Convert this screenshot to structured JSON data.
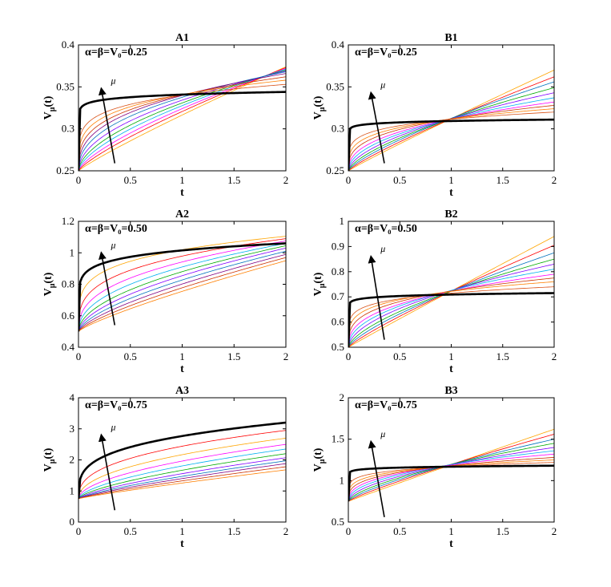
{
  "figure": {
    "background": "#ffffff"
  },
  "chart_data": [
    {
      "type": "line",
      "title": "A1",
      "annotation": "α=β=V₀=0.25",
      "mu_label": "μ",
      "xlabel": "t",
      "ylabel": "V_μ(t)",
      "xlim": [
        0,
        2
      ],
      "ylim": [
        0.25,
        0.4
      ],
      "xticks": [
        "0",
        "0.5",
        "1",
        "1.5",
        "2"
      ],
      "yticks": [
        "0.25",
        "0.3",
        "0.35",
        "0.4"
      ],
      "grid": false,
      "legend": "none",
      "arrow": {
        "from": [
          0.35,
          0.259
        ],
        "to": [
          0.22,
          0.348
        ]
      },
      "y0": 0.25,
      "series": [
        {
          "label": "thick",
          "color": "#000000",
          "end": 0.344,
          "shape": 0.05
        },
        {
          "color": "#ffa500",
          "end": 0.374,
          "shape": 0.9
        },
        {
          "color": "#ff0000",
          "end": 0.373,
          "shape": 0.8
        },
        {
          "color": "#ff00ff",
          "end": 0.372,
          "shape": 0.72
        },
        {
          "color": "#00b0f0",
          "end": 0.371,
          "shape": 0.64
        },
        {
          "color": "#00aa00",
          "end": 0.37,
          "shape": 0.57
        },
        {
          "color": "#8000ff",
          "end": 0.369,
          "shape": 0.5
        },
        {
          "color": "#0072bd",
          "end": 0.368,
          "shape": 0.43
        },
        {
          "color": "#800080",
          "end": 0.366,
          "shape": 0.37
        },
        {
          "color": "#cc3300",
          "end": 0.362,
          "shape": 0.31
        },
        {
          "color": "#ff7f00",
          "end": 0.358,
          "shape": 0.25
        },
        {
          "color": "#d95319",
          "end": 0.353,
          "shape": 0.19
        }
      ]
    },
    {
      "type": "line",
      "title": "B1",
      "annotation": "α=β=V₀=0.25",
      "mu_label": "μ",
      "xlabel": "t",
      "ylabel": "V_μ(t)",
      "xlim": [
        0,
        2
      ],
      "ylim": [
        0.25,
        0.4
      ],
      "xticks": [
        "0",
        "0.5",
        "1",
        "1.5",
        "2"
      ],
      "yticks": [
        "0.25",
        "0.3",
        "0.35",
        "0.4"
      ],
      "grid": false,
      "legend": "none",
      "arrow": {
        "from": [
          0.35,
          0.259
        ],
        "to": [
          0.22,
          0.343
        ]
      },
      "y0": 0.25,
      "series": [
        {
          "label": "thick",
          "color": "#000000",
          "end": 0.311,
          "shape": 0.04
        },
        {
          "color": "#ffa500",
          "end": 0.37,
          "shape": 0.95
        },
        {
          "color": "#ff0000",
          "end": 0.362,
          "shape": 0.85
        },
        {
          "color": "#0072bd",
          "end": 0.356,
          "shape": 0.76
        },
        {
          "color": "#00aa00",
          "end": 0.349,
          "shape": 0.67
        },
        {
          "color": "#8000ff",
          "end": 0.343,
          "shape": 0.58
        },
        {
          "color": "#00b0f0",
          "end": 0.337,
          "shape": 0.49
        },
        {
          "color": "#ff00ff",
          "end": 0.332,
          "shape": 0.41
        },
        {
          "color": "#cc3300",
          "end": 0.328,
          "shape": 0.33
        },
        {
          "color": "#ff7f00",
          "end": 0.324,
          "shape": 0.26
        },
        {
          "color": "#d95319",
          "end": 0.32,
          "shape": 0.19
        }
      ]
    },
    {
      "type": "line",
      "title": "A2",
      "annotation": "α=β=V₀=0.50",
      "mu_label": "μ",
      "xlabel": "t",
      "ylabel": "V_μ(t)",
      "xlim": [
        0,
        2
      ],
      "ylim": [
        0.4,
        1.2
      ],
      "xticks": [
        "0",
        "0.5",
        "1",
        "1.5",
        "2"
      ],
      "yticks": [
        "0.4",
        "0.6",
        "0.8",
        "1",
        "1.2"
      ],
      "grid": false,
      "legend": "none",
      "arrow": {
        "from": [
          0.35,
          0.54
        ],
        "to": [
          0.22,
          1.0
        ]
      },
      "y0": 0.5,
      "series": [
        {
          "label": "thick",
          "color": "#000000",
          "end": 1.06,
          "shape": 0.12
        },
        {
          "color": "#ffa500",
          "end": 1.105,
          "shape": 0.22
        },
        {
          "color": "#ff0000",
          "end": 1.09,
          "shape": 0.3
        },
        {
          "color": "#ff00ff",
          "end": 1.075,
          "shape": 0.38
        },
        {
          "color": "#00b0f0",
          "end": 1.06,
          "shape": 0.45
        },
        {
          "color": "#00aa00",
          "end": 1.045,
          "shape": 0.52
        },
        {
          "color": "#8000ff",
          "end": 1.03,
          "shape": 0.58
        },
        {
          "color": "#0072bd",
          "end": 1.01,
          "shape": 0.64
        },
        {
          "color": "#800080",
          "end": 0.99,
          "shape": 0.7
        },
        {
          "color": "#cc3300",
          "end": 0.97,
          "shape": 0.76
        },
        {
          "color": "#ff7f00",
          "end": 0.95,
          "shape": 0.82
        }
      ]
    },
    {
      "type": "line",
      "title": "B2",
      "annotation": "α=β=V₀=0.50",
      "mu_label": "μ",
      "xlabel": "t",
      "ylabel": "V_μ(t)",
      "xlim": [
        0,
        2
      ],
      "ylim": [
        0.5,
        1
      ],
      "xticks": [
        "0",
        "0.5",
        "1",
        "1.5",
        "2"
      ],
      "yticks": [
        "0.5",
        "0.6",
        "0.7",
        "0.8",
        "0.9",
        "1"
      ],
      "grid": false,
      "legend": "none",
      "arrow": {
        "from": [
          0.35,
          0.53
        ],
        "to": [
          0.22,
          0.86
        ]
      },
      "y0": 0.5,
      "series": [
        {
          "label": "thick",
          "color": "#000000",
          "end": 0.715,
          "shape": 0.04
        },
        {
          "color": "#ffa500",
          "end": 0.94,
          "shape": 0.98
        },
        {
          "color": "#ff0000",
          "end": 0.905,
          "shape": 0.86
        },
        {
          "color": "#0072bd",
          "end": 0.875,
          "shape": 0.75
        },
        {
          "color": "#00aa00",
          "end": 0.85,
          "shape": 0.65
        },
        {
          "color": "#8000ff",
          "end": 0.83,
          "shape": 0.55
        },
        {
          "color": "#00b0f0",
          "end": 0.81,
          "shape": 0.46
        },
        {
          "color": "#ff00ff",
          "end": 0.79,
          "shape": 0.38
        },
        {
          "color": "#cc3300",
          "end": 0.775,
          "shape": 0.3
        },
        {
          "color": "#ff7f00",
          "end": 0.76,
          "shape": 0.23
        },
        {
          "color": "#d95319",
          "end": 0.74,
          "shape": 0.16
        }
      ]
    },
    {
      "type": "line",
      "title": "A3",
      "annotation": "α=β=V₀=0.75",
      "mu_label": "μ",
      "xlabel": "t",
      "ylabel": "V_μ(t)",
      "xlim": [
        0,
        2
      ],
      "ylim": [
        0,
        4
      ],
      "xticks": [
        "0",
        "0.5",
        "1",
        "1.5",
        "2"
      ],
      "yticks": [
        "0",
        "1",
        "2",
        "3",
        "4"
      ],
      "grid": false,
      "legend": "none",
      "arrow": {
        "from": [
          0.35,
          0.38
        ],
        "to": [
          0.22,
          2.8
        ]
      },
      "y0": 0.75,
      "series": [
        {
          "label": "thick",
          "color": "#000000",
          "end": 3.2,
          "shape": 0.28
        },
        {
          "color": "#ff0000",
          "end": 2.95,
          "shape": 0.38
        },
        {
          "color": "#ffa500",
          "end": 2.7,
          "shape": 0.46
        },
        {
          "color": "#ff00ff",
          "end": 2.5,
          "shape": 0.53
        },
        {
          "color": "#00b0f0",
          "end": 2.35,
          "shape": 0.6
        },
        {
          "color": "#00aa00",
          "end": 2.2,
          "shape": 0.66
        },
        {
          "color": "#8000ff",
          "end": 2.07,
          "shape": 0.71
        },
        {
          "color": "#0072bd",
          "end": 1.97,
          "shape": 0.76
        },
        {
          "color": "#800080",
          "end": 1.88,
          "shape": 0.8
        },
        {
          "color": "#cc3300",
          "end": 1.78,
          "shape": 0.84
        },
        {
          "color": "#ff7f00",
          "end": 1.68,
          "shape": 0.88
        }
      ]
    },
    {
      "type": "line",
      "title": "B3",
      "annotation": "α=β=V₀=0.75",
      "mu_label": "μ",
      "xlabel": "t",
      "ylabel": "V_μ(t)",
      "xlim": [
        0,
        2
      ],
      "ylim": [
        0.5,
        2
      ],
      "xticks": [
        "0",
        "0.5",
        "1",
        "1.5",
        "2"
      ],
      "yticks": [
        "0.5",
        "1",
        "1.5",
        "2"
      ],
      "grid": false,
      "legend": "none",
      "arrow": {
        "from": [
          0.35,
          0.56
        ],
        "to": [
          0.22,
          1.47
        ]
      },
      "y0": 0.75,
      "series": [
        {
          "label": "thick",
          "color": "#000000",
          "end": 1.18,
          "shape": 0.04
        },
        {
          "color": "#ffa500",
          "end": 1.62,
          "shape": 0.98
        },
        {
          "color": "#ff0000",
          "end": 1.56,
          "shape": 0.86
        },
        {
          "color": "#0072bd",
          "end": 1.5,
          "shape": 0.75
        },
        {
          "color": "#00aa00",
          "end": 1.45,
          "shape": 0.65
        },
        {
          "color": "#8000ff",
          "end": 1.4,
          "shape": 0.55
        },
        {
          "color": "#00b0f0",
          "end": 1.36,
          "shape": 0.46
        },
        {
          "color": "#ff00ff",
          "end": 1.32,
          "shape": 0.38
        },
        {
          "color": "#cc3300",
          "end": 1.28,
          "shape": 0.3
        },
        {
          "color": "#ff7f00",
          "end": 1.25,
          "shape": 0.23
        },
        {
          "color": "#d95319",
          "end": 1.22,
          "shape": 0.16
        }
      ]
    }
  ]
}
